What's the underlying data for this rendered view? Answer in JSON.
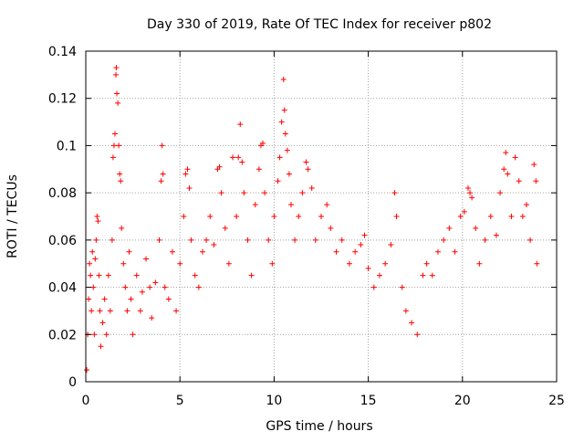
{
  "chart_data": {
    "type": "scatter",
    "title": "Day 330 of 2019, Rate Of TEC Index for receiver p802",
    "xlabel": "GPS time / hours",
    "ylabel": "ROTI / TECUs",
    "xlim": [
      0,
      25
    ],
    "ylim": [
      0,
      0.14
    ],
    "xticks": [
      0,
      5,
      10,
      15,
      20,
      25
    ],
    "xtick_labels": [
      "0",
      "5",
      "10",
      "15",
      "20",
      "25"
    ],
    "yticks": [
      0,
      0.02,
      0.04,
      0.06,
      0.08,
      0.1,
      0.12,
      0.14
    ],
    "ytick_labels": [
      "0",
      "0.02",
      "0.04",
      "0.06",
      "0.08",
      "0.1",
      "0.12",
      "0.14"
    ],
    "grid": true,
    "marker": "+",
    "color": "#ff0000",
    "series": [
      {
        "name": "ROTI p802",
        "points": [
          [
            0.05,
            0.005
          ],
          [
            0.1,
            0.02
          ],
          [
            0.15,
            0.035
          ],
          [
            0.2,
            0.05
          ],
          [
            0.25,
            0.045
          ],
          [
            0.3,
            0.03
          ],
          [
            0.35,
            0.055
          ],
          [
            0.4,
            0.04
          ],
          [
            0.45,
            0.02
          ],
          [
            0.5,
            0.052
          ],
          [
            0.55,
            0.06
          ],
          [
            0.6,
            0.07
          ],
          [
            0.65,
            0.068
          ],
          [
            0.7,
            0.045
          ],
          [
            0.75,
            0.03
          ],
          [
            0.8,
            0.015
          ],
          [
            0.9,
            0.025
          ],
          [
            1.0,
            0.035
          ],
          [
            1.1,
            0.02
          ],
          [
            1.2,
            0.045
          ],
          [
            1.3,
            0.03
          ],
          [
            1.4,
            0.06
          ],
          [
            1.45,
            0.095
          ],
          [
            1.5,
            0.1
          ],
          [
            1.55,
            0.105
          ],
          [
            1.6,
            0.13
          ],
          [
            1.62,
            0.133
          ],
          [
            1.65,
            0.122
          ],
          [
            1.7,
            0.118
          ],
          [
            1.75,
            0.1
          ],
          [
            1.8,
            0.088
          ],
          [
            1.85,
            0.085
          ],
          [
            1.9,
            0.065
          ],
          [
            2.0,
            0.05
          ],
          [
            2.1,
            0.04
          ],
          [
            2.2,
            0.03
          ],
          [
            2.3,
            0.055
          ],
          [
            2.4,
            0.035
          ],
          [
            2.5,
            0.02
          ],
          [
            2.7,
            0.045
          ],
          [
            2.9,
            0.03
          ],
          [
            3.0,
            0.038
          ],
          [
            3.2,
            0.052
          ],
          [
            3.4,
            0.04
          ],
          [
            3.5,
            0.027
          ],
          [
            3.7,
            0.042
          ],
          [
            3.9,
            0.06
          ],
          [
            4.0,
            0.085
          ],
          [
            4.05,
            0.1
          ],
          [
            4.1,
            0.088
          ],
          [
            4.2,
            0.04
          ],
          [
            4.4,
            0.035
          ],
          [
            4.6,
            0.055
          ],
          [
            4.8,
            0.03
          ],
          [
            5.0,
            0.05
          ],
          [
            5.2,
            0.07
          ],
          [
            5.3,
            0.088
          ],
          [
            5.4,
            0.09
          ],
          [
            5.5,
            0.082
          ],
          [
            5.6,
            0.06
          ],
          [
            5.8,
            0.045
          ],
          [
            6.0,
            0.04
          ],
          [
            6.2,
            0.055
          ],
          [
            6.4,
            0.06
          ],
          [
            6.6,
            0.07
          ],
          [
            6.8,
            0.058
          ],
          [
            7.0,
            0.09
          ],
          [
            7.1,
            0.091
          ],
          [
            7.2,
            0.08
          ],
          [
            7.4,
            0.065
          ],
          [
            7.6,
            0.05
          ],
          [
            7.8,
            0.095
          ],
          [
            8.0,
            0.07
          ],
          [
            8.1,
            0.095
          ],
          [
            8.2,
            0.109
          ],
          [
            8.3,
            0.093
          ],
          [
            8.4,
            0.08
          ],
          [
            8.6,
            0.06
          ],
          [
            8.8,
            0.045
          ],
          [
            9.0,
            0.075
          ],
          [
            9.2,
            0.09
          ],
          [
            9.3,
            0.1
          ],
          [
            9.4,
            0.101
          ],
          [
            9.5,
            0.08
          ],
          [
            9.7,
            0.06
          ],
          [
            9.9,
            0.05
          ],
          [
            10.0,
            0.07
          ],
          [
            10.2,
            0.085
          ],
          [
            10.3,
            0.095
          ],
          [
            10.4,
            0.11
          ],
          [
            10.5,
            0.128
          ],
          [
            10.55,
            0.115
          ],
          [
            10.6,
            0.105
          ],
          [
            10.7,
            0.098
          ],
          [
            10.8,
            0.088
          ],
          [
            10.9,
            0.075
          ],
          [
            11.1,
            0.06
          ],
          [
            11.3,
            0.07
          ],
          [
            11.5,
            0.08
          ],
          [
            11.7,
            0.093
          ],
          [
            11.8,
            0.09
          ],
          [
            12.0,
            0.082
          ],
          [
            12.2,
            0.06
          ],
          [
            12.5,
            0.07
          ],
          [
            12.8,
            0.075
          ],
          [
            13.0,
            0.065
          ],
          [
            13.3,
            0.055
          ],
          [
            13.6,
            0.06
          ],
          [
            14.0,
            0.05
          ],
          [
            14.3,
            0.055
          ],
          [
            14.6,
            0.058
          ],
          [
            14.8,
            0.062
          ],
          [
            15.0,
            0.048
          ],
          [
            15.3,
            0.04
          ],
          [
            15.6,
            0.045
          ],
          [
            15.9,
            0.05
          ],
          [
            16.2,
            0.058
          ],
          [
            16.4,
            0.08
          ],
          [
            16.5,
            0.07
          ],
          [
            16.8,
            0.04
          ],
          [
            17.0,
            0.03
          ],
          [
            17.3,
            0.025
          ],
          [
            17.6,
            0.02
          ],
          [
            17.9,
            0.045
          ],
          [
            18.1,
            0.05
          ],
          [
            18.4,
            0.045
          ],
          [
            18.7,
            0.055
          ],
          [
            19.0,
            0.06
          ],
          [
            19.3,
            0.065
          ],
          [
            19.6,
            0.055
          ],
          [
            19.9,
            0.07
          ],
          [
            20.1,
            0.072
          ],
          [
            20.3,
            0.082
          ],
          [
            20.4,
            0.08
          ],
          [
            20.5,
            0.078
          ],
          [
            20.7,
            0.065
          ],
          [
            20.9,
            0.05
          ],
          [
            21.2,
            0.06
          ],
          [
            21.5,
            0.07
          ],
          [
            21.8,
            0.062
          ],
          [
            22.0,
            0.08
          ],
          [
            22.2,
            0.09
          ],
          [
            22.3,
            0.097
          ],
          [
            22.4,
            0.088
          ],
          [
            22.6,
            0.07
          ],
          [
            22.8,
            0.095
          ],
          [
            23.0,
            0.085
          ],
          [
            23.2,
            0.07
          ],
          [
            23.4,
            0.075
          ],
          [
            23.6,
            0.06
          ],
          [
            23.8,
            0.092
          ],
          [
            23.9,
            0.085
          ],
          [
            23.95,
            0.05
          ]
        ]
      }
    ]
  }
}
